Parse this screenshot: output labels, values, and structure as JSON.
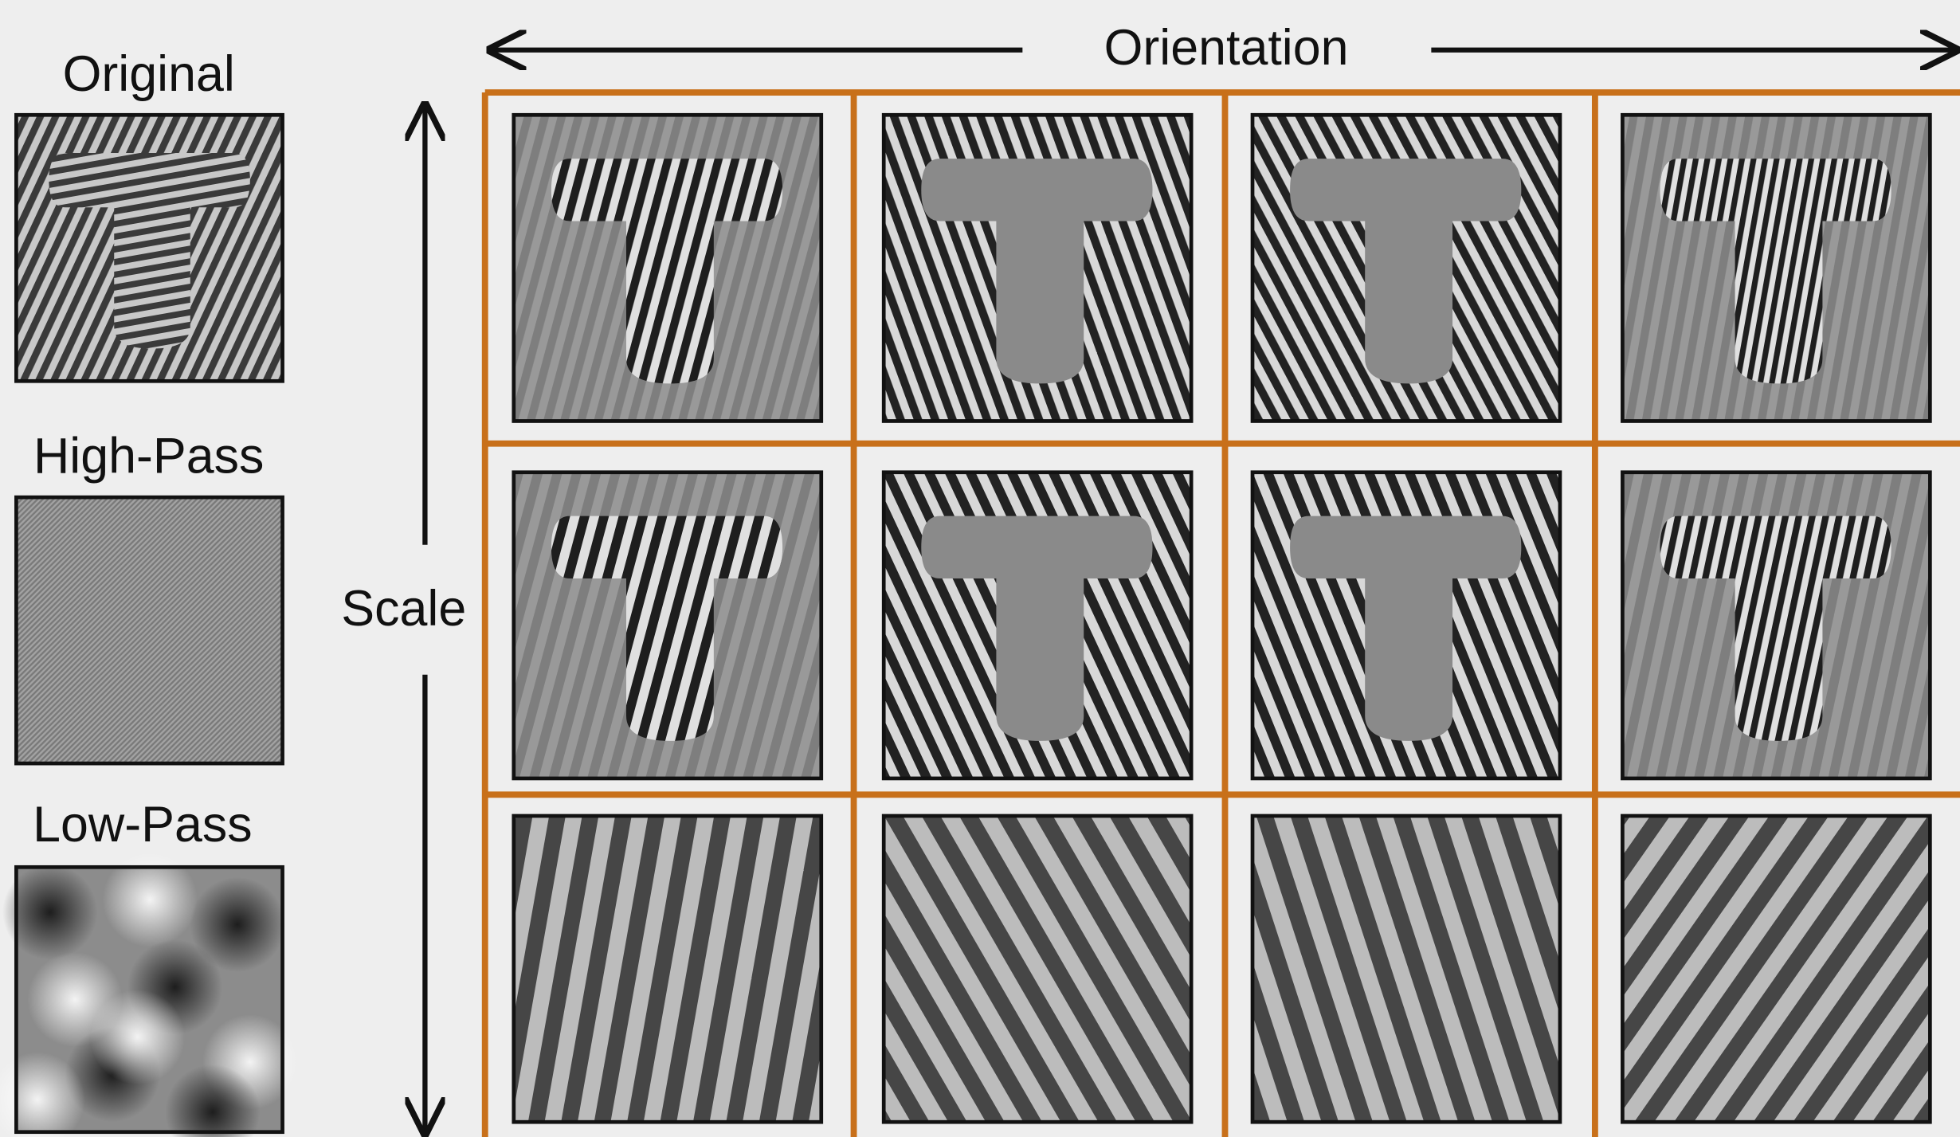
{
  "labels": {
    "original": "Original",
    "high_pass": "High-Pass",
    "low_pass": "Low-Pass"
  },
  "axes": {
    "orientation": "Orientation",
    "scale": "Scale"
  }
}
